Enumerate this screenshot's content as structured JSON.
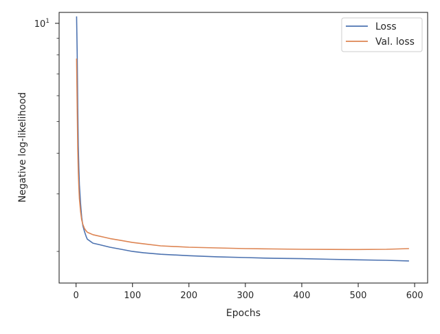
{
  "chart_data": {
    "type": "line",
    "xlabel": "Epochs",
    "ylabel": "Negative log-likelihood",
    "xlim": [
      -30,
      623
    ],
    "ylim": [
      1.6,
      10.8
    ],
    "y_scale": "log",
    "x_ticks": [
      0,
      100,
      200,
      300,
      400,
      500,
      600
    ],
    "x_tick_labels": [
      "0",
      "100",
      "200",
      "300",
      "400",
      "500",
      "600"
    ],
    "y_major_ticks": [
      {
        "value": 10,
        "base": "10",
        "exponent": "1"
      }
    ],
    "grid": false,
    "legend_position": "top-right",
    "series": [
      {
        "name": "Loss",
        "color": "#4c72b0",
        "x": [
          1,
          2,
          3,
          4,
          5,
          6,
          8,
          10,
          12,
          15,
          18,
          20,
          25,
          30,
          40,
          50,
          60,
          80,
          100,
          120,
          150,
          200,
          250,
          300,
          350,
          400,
          450,
          500,
          550,
          590
        ],
        "y": [
          10.5,
          8.0,
          5.5,
          4.2,
          3.6,
          3.2,
          2.8,
          2.55,
          2.4,
          2.3,
          2.22,
          2.18,
          2.15,
          2.12,
          2.1,
          2.08,
          2.06,
          2.03,
          2.0,
          1.98,
          1.96,
          1.94,
          1.925,
          1.915,
          1.905,
          1.9,
          1.892,
          1.885,
          1.878,
          1.87
        ]
      },
      {
        "name": "Val. loss",
        "color": "#dd8452",
        "x": [
          1,
          2,
          3,
          4,
          5,
          6,
          8,
          10,
          12,
          15,
          18,
          20,
          25,
          30,
          40,
          50,
          60,
          80,
          100,
          120,
          150,
          200,
          250,
          300,
          350,
          400,
          450,
          500,
          550,
          590
        ],
        "y": [
          7.8,
          5.5,
          4.1,
          3.5,
          3.15,
          2.9,
          2.65,
          2.5,
          2.42,
          2.35,
          2.31,
          2.29,
          2.27,
          2.25,
          2.23,
          2.21,
          2.19,
          2.16,
          2.13,
          2.11,
          2.08,
          2.06,
          2.05,
          2.04,
          2.035,
          2.03,
          2.028,
          2.027,
          2.03,
          2.04
        ]
      }
    ]
  }
}
